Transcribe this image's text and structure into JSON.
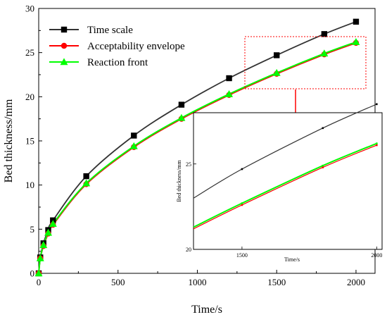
{
  "chart_data": [
    {
      "type": "line",
      "xlabel": "Time/s",
      "ylabel": "Bed thickness/mm",
      "xlim": [
        0,
        2120
      ],
      "ylim": [
        0,
        30
      ],
      "xticks": [
        "0",
        "500",
        "1000",
        "1500",
        "2000"
      ],
      "yticks": [
        "0",
        "5",
        "10",
        "15",
        "20",
        "25",
        "30"
      ],
      "legend_position": "top-left",
      "series": [
        {
          "name": "Time scale",
          "color": "#333333",
          "marker": "square",
          "marker_color": "#000000",
          "x": [
            0,
            10,
            30,
            60,
            90,
            300,
            600,
            900,
            1200,
            1500,
            1800,
            2000
          ],
          "y": [
            0,
            1.8,
            3.4,
            4.9,
            6.0,
            11.0,
            15.6,
            19.1,
            22.1,
            24.7,
            27.1,
            28.5
          ]
        },
        {
          "name": "Acceptability envelope",
          "color": "#ff0000",
          "marker": "circle",
          "marker_color": "#ff0000",
          "x": [
            0,
            10,
            30,
            60,
            90,
            300,
            600,
            900,
            1200,
            1500,
            1800,
            2000
          ],
          "y": [
            0,
            1.7,
            3.1,
            4.5,
            5.5,
            10.1,
            14.3,
            17.5,
            20.2,
            22.6,
            24.8,
            26.1
          ]
        },
        {
          "name": "Reaction front",
          "color": "#00ff00",
          "marker": "triangle",
          "marker_color": "#00ff00",
          "x": [
            0,
            10,
            30,
            60,
            90,
            300,
            600,
            900,
            1200,
            1500,
            1800,
            2000
          ],
          "y": [
            0,
            1.7,
            3.2,
            4.6,
            5.6,
            10.2,
            14.4,
            17.6,
            20.3,
            22.7,
            24.9,
            26.2
          ]
        }
      ]
    },
    {
      "type": "line",
      "xlabel": "Time/s",
      "ylabel": "Bed thickness/mm",
      "xlim": [
        1320,
        2020
      ],
      "ylim": [
        20,
        28
      ],
      "xticks": [
        "1500",
        "2000"
      ],
      "yticks": [
        "20",
        "25"
      ],
      "series": [
        {
          "name": "Time scale",
          "color": "#333333",
          "x": [
            1320,
            1500,
            1800,
            2000
          ],
          "y": [
            23.0,
            24.7,
            27.1,
            28.5
          ]
        },
        {
          "name": "Acceptability envelope",
          "color": "#ff0000",
          "x": [
            1320,
            1500,
            1800,
            2000
          ],
          "y": [
            21.2,
            22.6,
            24.8,
            26.1
          ]
        },
        {
          "name": "Reaction front",
          "color": "#00ff00",
          "x": [
            1320,
            1500,
            1800,
            2000
          ],
          "y": [
            21.3,
            22.7,
            24.9,
            26.2
          ]
        }
      ]
    }
  ]
}
